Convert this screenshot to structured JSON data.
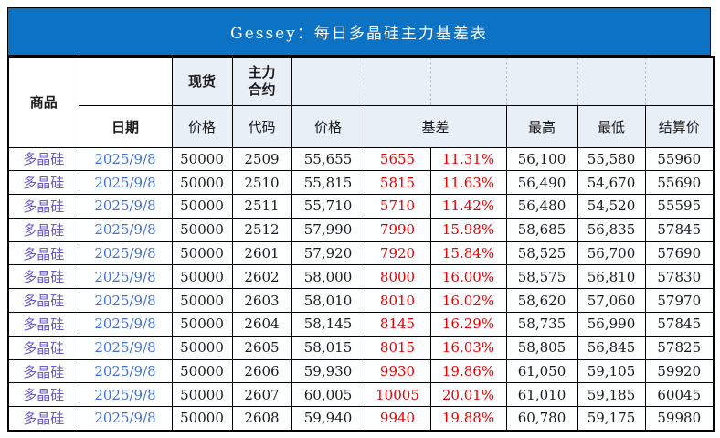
{
  "banner": {
    "title": "Gessey：每日多晶硅主力基差表"
  },
  "colors": {
    "banner_bg": "#0C72C4",
    "header_fill": "#E9EFF7",
    "product_text": "#6A5ACD",
    "date_text": "#4470CF",
    "negative_red": "#EA0000"
  },
  "table": {
    "header": {
      "product": "商品",
      "date": "日期",
      "spot_group": "现货",
      "main_contract": "主力\n合约",
      "spot_price": "价格",
      "code": "代码",
      "futures_price": "价格",
      "basis": "基差",
      "high": "最高",
      "low": "最低",
      "settlement": "结算价"
    },
    "column_names": [
      "cell-product",
      "cell-date",
      "cell-spot-price",
      "cell-contract-code",
      "cell-futures-price",
      "cell-basis",
      "cell-basis-pct",
      "cell-high",
      "cell-low",
      "cell-settlement"
    ],
    "column_styles": [
      "product",
      "date",
      "num",
      "num",
      "num",
      "red",
      "red",
      "num",
      "num",
      "num"
    ]
  },
  "chart_data": {
    "type": "table",
    "title": "Gessey：每日多晶硅主力基差表",
    "columns": [
      "商品",
      "日期",
      "现货价格",
      "主力合约代码",
      "价格",
      "基差",
      "基差%",
      "最高",
      "最低",
      "结算价"
    ],
    "rows": [
      [
        "多晶硅",
        "2025/9/8",
        "50000",
        "2509",
        "55,655",
        "5655",
        "11.31%",
        "56,100",
        "55,580",
        "55960"
      ],
      [
        "多晶硅",
        "2025/9/8",
        "50000",
        "2510",
        "55,815",
        "5815",
        "11.63%",
        "56,490",
        "54,670",
        "55690"
      ],
      [
        "多晶硅",
        "2025/9/8",
        "50000",
        "2511",
        "55,710",
        "5710",
        "11.42%",
        "56,480",
        "54,520",
        "55595"
      ],
      [
        "多晶硅",
        "2025/9/8",
        "50000",
        "2512",
        "57,990",
        "7990",
        "15.98%",
        "58,685",
        "56,835",
        "57845"
      ],
      [
        "多晶硅",
        "2025/9/8",
        "50000",
        "2601",
        "57,920",
        "7920",
        "15.84%",
        "58,525",
        "56,700",
        "57690"
      ],
      [
        "多晶硅",
        "2025/9/8",
        "50000",
        "2602",
        "58,000",
        "8000",
        "16.00%",
        "58,575",
        "56,810",
        "57830"
      ],
      [
        "多晶硅",
        "2025/9/8",
        "50000",
        "2603",
        "58,010",
        "8010",
        "16.02%",
        "58,620",
        "57,060",
        "57970"
      ],
      [
        "多晶硅",
        "2025/9/8",
        "50000",
        "2604",
        "58,145",
        "8145",
        "16.29%",
        "58,735",
        "56,990",
        "57845"
      ],
      [
        "多晶硅",
        "2025/9/8",
        "50000",
        "2605",
        "58,015",
        "8015",
        "16.03%",
        "58,805",
        "56,845",
        "57825"
      ],
      [
        "多晶硅",
        "2025/9/8",
        "50000",
        "2606",
        "59,930",
        "9930",
        "19.86%",
        "61,050",
        "59,105",
        "59920"
      ],
      [
        "多晶硅",
        "2025/9/8",
        "50000",
        "2607",
        "60,005",
        "10005",
        "20.01%",
        "61,010",
        "59,185",
        "60045"
      ],
      [
        "多晶硅",
        "2025/9/8",
        "50000",
        "2608",
        "59,940",
        "9940",
        "19.88%",
        "60,780",
        "59,175",
        "59980"
      ]
    ]
  }
}
